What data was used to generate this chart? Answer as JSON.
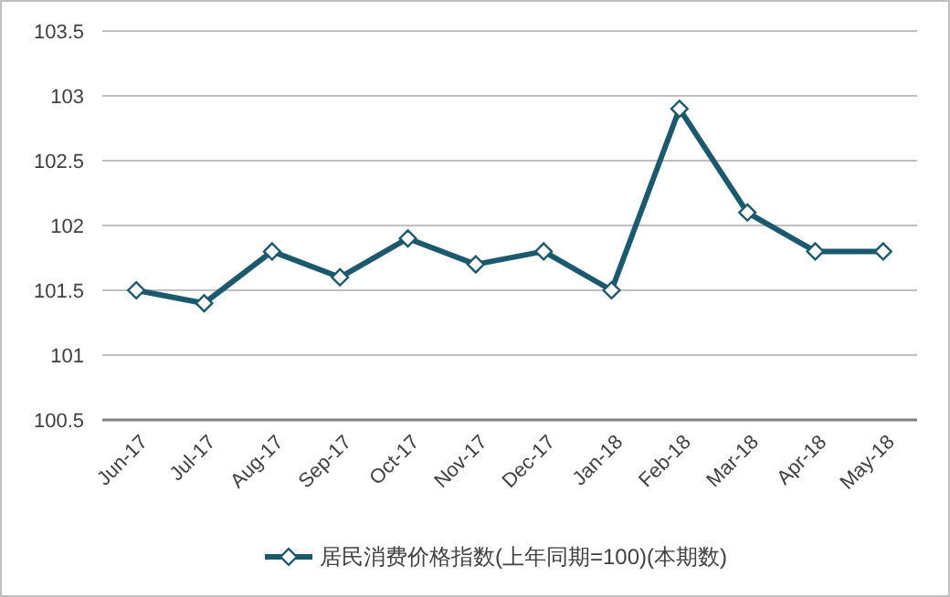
{
  "chart_data": {
    "type": "line",
    "categories": [
      "Jun-17",
      "Jul-17",
      "Aug-17",
      "Sep-17",
      "Oct-17",
      "Nov-17",
      "Dec-17",
      "Jan-18",
      "Feb-18",
      "Mar-18",
      "Apr-18",
      "May-18"
    ],
    "series": [
      {
        "name": "居民消费价格指数(上年同期=100)(本期数)",
        "color": "#1b5a6e",
        "values": [
          101.5,
          101.4,
          101.8,
          101.6,
          101.9,
          101.7,
          101.8,
          101.5,
          102.9,
          102.1,
          101.8,
          101.8
        ]
      }
    ],
    "ylim": [
      100.5,
      103.5
    ],
    "yticks": [
      100.5,
      101,
      101.5,
      102,
      102.5,
      103,
      103.5
    ],
    "grid": "y",
    "legend": "bottom",
    "marker": "diamond",
    "line_style": "solid"
  }
}
